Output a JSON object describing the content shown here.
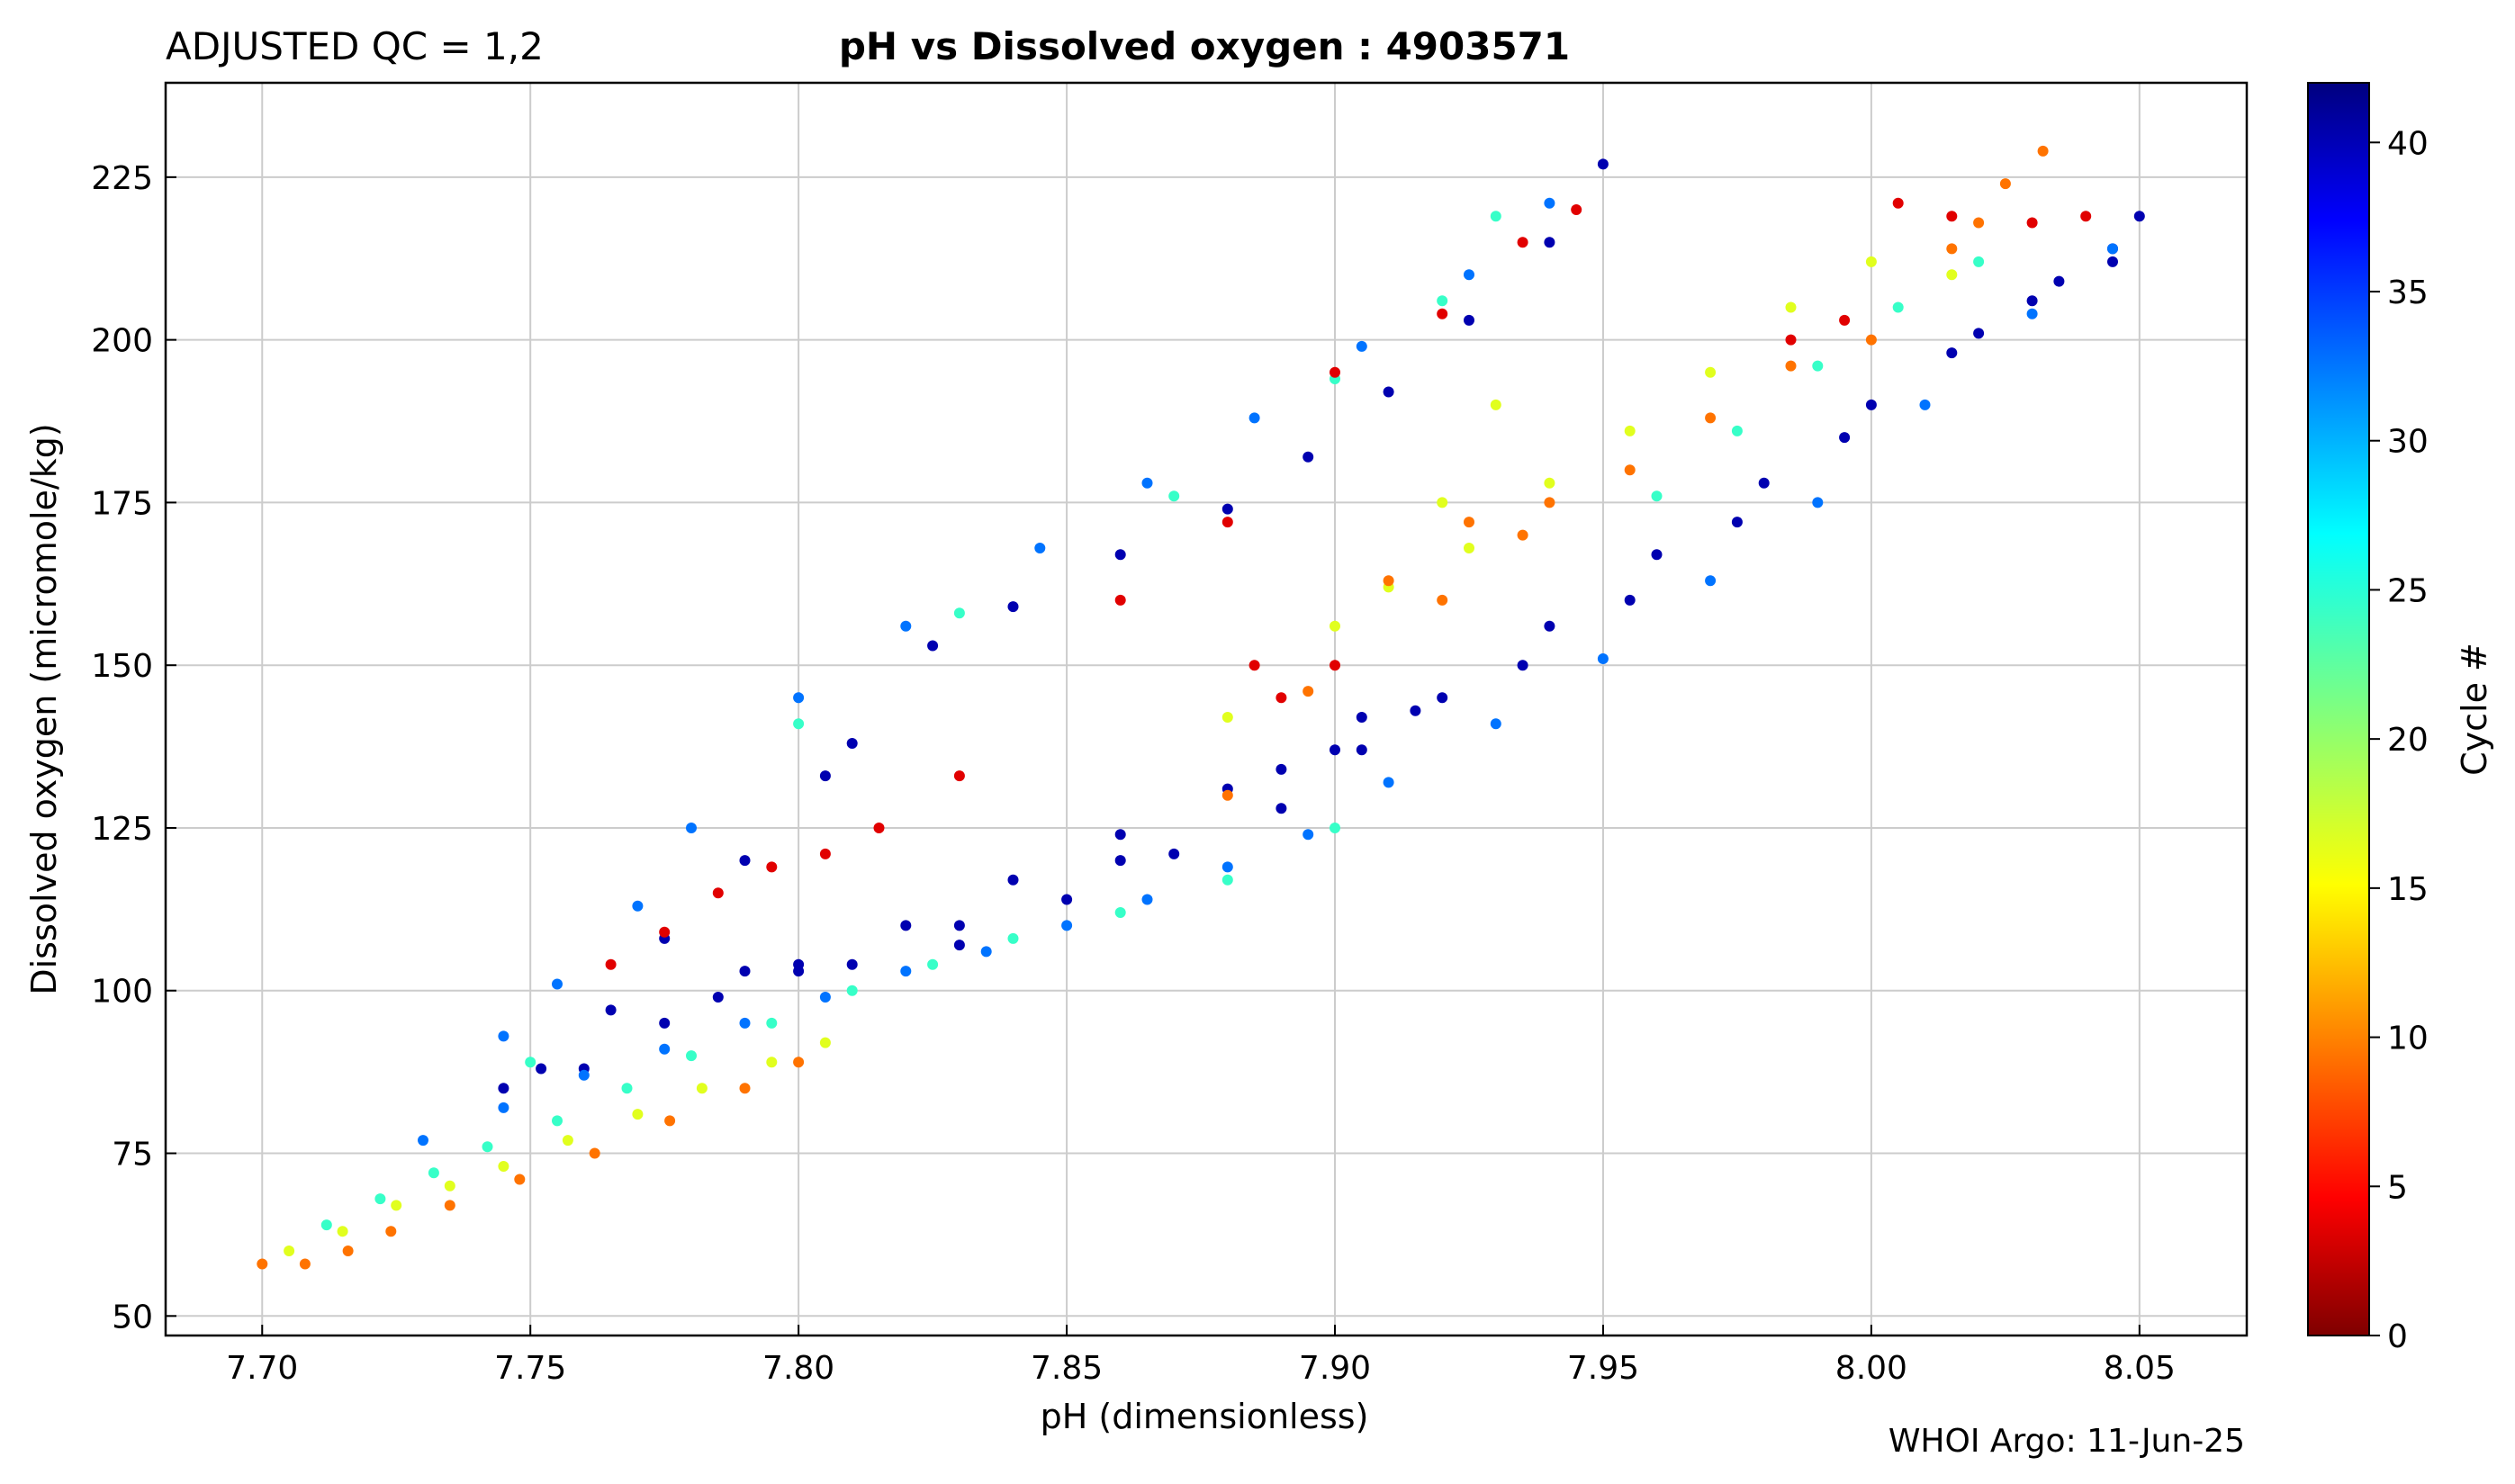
{
  "header": {
    "left_label": "ADJUSTED QC = 1,2",
    "title": "pH vs Dissolved oxygen : 4903571"
  },
  "footer": {
    "credit": "WHOI Argo: 11-Jun-25"
  },
  "colorbar": {
    "label": "Cycle #",
    "min": 0,
    "max": 42,
    "ticks": [
      0,
      5,
      10,
      15,
      20,
      25,
      30,
      35,
      40
    ],
    "colormap": "jet_r"
  },
  "chart_data": {
    "type": "scatter",
    "title": "pH vs Dissolved oxygen : 4903571",
    "xlabel": "pH  (dimensionless)",
    "ylabel": "Dissolved oxygen  (micromole/kg)",
    "xlim": [
      7.682,
      8.07
    ],
    "ylim": [
      47.0,
      239.5
    ],
    "xticks": [
      "7.70",
      "7.75",
      "7.80",
      "7.85",
      "7.90",
      "7.95",
      "8.00",
      "8.05"
    ],
    "yticks": [
      "50",
      "75",
      "100",
      "125",
      "150",
      "175",
      "200",
      "225"
    ],
    "grid": true,
    "color_by": "Cycle #",
    "series": [
      {
        "color_value": 40,
        "points": [
          [
            7.745,
            85
          ],
          [
            7.76,
            88
          ],
          [
            7.775,
            95
          ],
          [
            7.79,
            103
          ],
          [
            7.81,
            104
          ],
          [
            7.83,
            107
          ],
          [
            7.85,
            114
          ],
          [
            7.87,
            121
          ],
          [
            7.89,
            128
          ],
          [
            7.905,
            137
          ],
          [
            7.92,
            145
          ],
          [
            7.94,
            156
          ],
          [
            7.96,
            167
          ],
          [
            7.98,
            178
          ],
          [
            8.0,
            190
          ],
          [
            8.02,
            201
          ],
          [
            8.035,
            209
          ],
          [
            8.045,
            214
          ],
          [
            8.05,
            219
          ],
          [
            8.045,
            212
          ],
          [
            8.03,
            206
          ],
          [
            8.015,
            198
          ],
          [
            7.995,
            185
          ],
          [
            7.975,
            172
          ],
          [
            7.955,
            160
          ],
          [
            7.935,
            150
          ],
          [
            7.915,
            143
          ],
          [
            7.9,
            137
          ],
          [
            7.88,
            131
          ],
          [
            7.86,
            124
          ],
          [
            7.84,
            117
          ],
          [
            7.82,
            110
          ],
          [
            7.8,
            104
          ],
          [
            7.785,
            99
          ],
          [
            7.8,
            103
          ],
          [
            7.83,
            110
          ],
          [
            7.86,
            120
          ],
          [
            7.89,
            134
          ],
          [
            7.905,
            142
          ],
          [
            7.95,
            227
          ],
          [
            7.94,
            215
          ],
          [
            7.925,
            203
          ],
          [
            7.91,
            192
          ],
          [
            7.895,
            182
          ],
          [
            7.88,
            174
          ],
          [
            7.86,
            167
          ],
          [
            7.84,
            159
          ],
          [
            7.825,
            153
          ],
          [
            7.81,
            138
          ],
          [
            7.805,
            133
          ],
          [
            7.79,
            120
          ],
          [
            7.775,
            108
          ],
          [
            7.765,
            97
          ],
          [
            7.752,
            88
          ]
        ]
      },
      {
        "color_value": 32,
        "points": [
          [
            7.73,
            77
          ],
          [
            7.745,
            82
          ],
          [
            7.76,
            87
          ],
          [
            7.775,
            91
          ],
          [
            7.79,
            95
          ],
          [
            7.805,
            99
          ],
          [
            7.82,
            103
          ],
          [
            7.835,
            106
          ],
          [
            7.85,
            110
          ],
          [
            7.865,
            114
          ],
          [
            7.88,
            119
          ],
          [
            7.895,
            124
          ],
          [
            7.91,
            132
          ],
          [
            7.93,
            141
          ],
          [
            7.95,
            151
          ],
          [
            7.97,
            163
          ],
          [
            7.99,
            175
          ],
          [
            8.01,
            190
          ],
          [
            8.03,
            204
          ],
          [
            8.045,
            214
          ],
          [
            7.94,
            221
          ],
          [
            7.925,
            210
          ],
          [
            7.905,
            199
          ],
          [
            7.885,
            188
          ],
          [
            7.865,
            178
          ],
          [
            7.845,
            168
          ],
          [
            7.82,
            156
          ],
          [
            7.8,
            145
          ],
          [
            7.78,
            125
          ],
          [
            7.77,
            113
          ],
          [
            7.755,
            101
          ],
          [
            7.745,
            93
          ]
        ]
      },
      {
        "color_value": 24,
        "points": [
          [
            7.712,
            64
          ],
          [
            7.722,
            68
          ],
          [
            7.732,
            72
          ],
          [
            7.742,
            76
          ],
          [
            7.755,
            80
          ],
          [
            7.768,
            85
          ],
          [
            7.78,
            90
          ],
          [
            7.795,
            95
          ],
          [
            7.81,
            100
          ],
          [
            7.825,
            104
          ],
          [
            7.84,
            108
          ],
          [
            7.86,
            112
          ],
          [
            7.88,
            117
          ],
          [
            7.9,
            125
          ],
          [
            7.96,
            176
          ],
          [
            7.975,
            186
          ],
          [
            7.99,
            196
          ],
          [
            8.005,
            205
          ],
          [
            8.02,
            212
          ],
          [
            7.93,
            219
          ],
          [
            7.92,
            206
          ],
          [
            7.9,
            194
          ],
          [
            7.87,
            176
          ],
          [
            7.83,
            158
          ],
          [
            7.8,
            141
          ],
          [
            7.75,
            89
          ]
        ]
      },
      {
        "color_value": 17,
        "points": [
          [
            7.705,
            60
          ],
          [
            7.715,
            63
          ],
          [
            7.725,
            67
          ],
          [
            7.735,
            70
          ],
          [
            7.745,
            73
          ],
          [
            7.757,
            77
          ],
          [
            7.77,
            81
          ],
          [
            7.782,
            85
          ],
          [
            7.795,
            89
          ],
          [
            7.805,
            92
          ],
          [
            7.88,
            142
          ],
          [
            7.9,
            156
          ],
          [
            7.925,
            168
          ],
          [
            7.94,
            178
          ],
          [
            7.955,
            186
          ],
          [
            7.97,
            195
          ],
          [
            7.985,
            205
          ],
          [
            8.0,
            212
          ],
          [
            8.015,
            210
          ],
          [
            7.93,
            190
          ],
          [
            7.92,
            175
          ],
          [
            7.91,
            162
          ]
        ]
      },
      {
        "color_value": 10,
        "points": [
          [
            7.7,
            58
          ],
          [
            7.708,
            58
          ],
          [
            7.716,
            60
          ],
          [
            7.724,
            63
          ],
          [
            7.735,
            67
          ],
          [
            7.748,
            71
          ],
          [
            7.762,
            75
          ],
          [
            7.776,
            80
          ],
          [
            7.79,
            85
          ],
          [
            7.8,
            89
          ],
          [
            7.88,
            130
          ],
          [
            7.895,
            146
          ],
          [
            7.91,
            163
          ],
          [
            7.925,
            172
          ],
          [
            7.94,
            175
          ],
          [
            7.955,
            180
          ],
          [
            7.97,
            188
          ],
          [
            7.985,
            196
          ],
          [
            8.0,
            200
          ],
          [
            8.015,
            214
          ],
          [
            8.025,
            224
          ],
          [
            8.032,
            229
          ],
          [
            8.02,
            218
          ],
          [
            7.935,
            170
          ],
          [
            7.92,
            160
          ]
        ]
      },
      {
        "color_value": 4,
        "points": [
          [
            7.765,
            104
          ],
          [
            7.775,
            109
          ],
          [
            7.785,
            115
          ],
          [
            7.795,
            119
          ],
          [
            7.805,
            121
          ],
          [
            7.815,
            125
          ],
          [
            7.83,
            133
          ],
          [
            7.86,
            160
          ],
          [
            7.88,
            172
          ],
          [
            7.9,
            195
          ],
          [
            7.92,
            204
          ],
          [
            7.935,
            215
          ],
          [
            7.945,
            220
          ],
          [
            8.005,
            221
          ],
          [
            8.015,
            219
          ],
          [
            8.03,
            218
          ],
          [
            8.04,
            219
          ],
          [
            7.89,
            145
          ],
          [
            7.885,
            150
          ],
          [
            7.9,
            150
          ],
          [
            7.985,
            200
          ],
          [
            7.995,
            203
          ]
        ]
      }
    ]
  }
}
